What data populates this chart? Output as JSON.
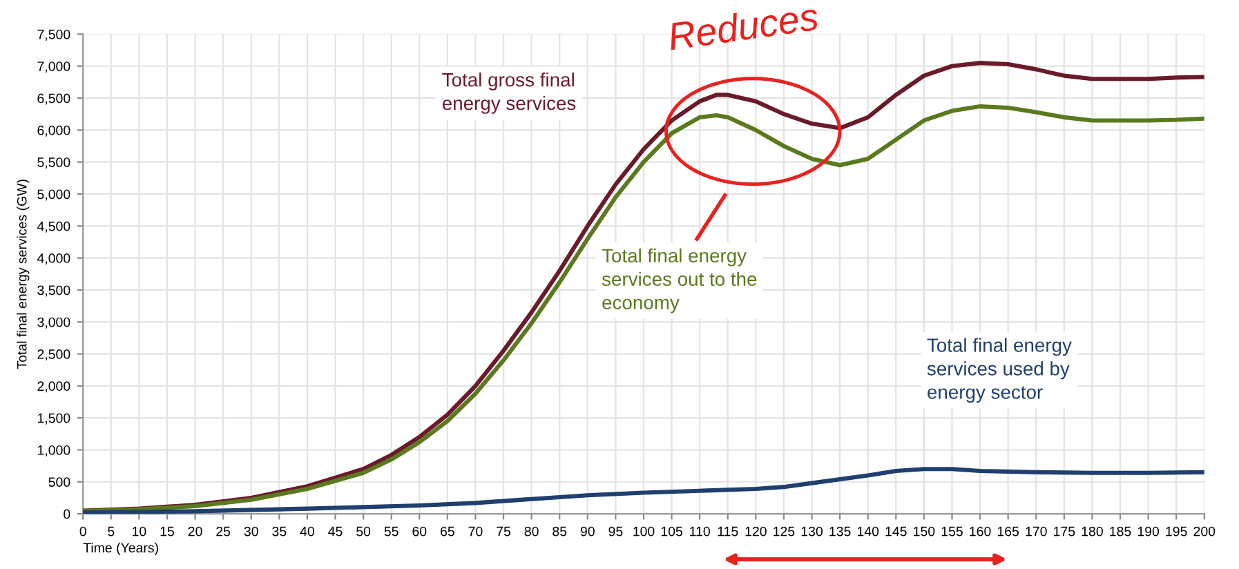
{
  "chart_data": {
    "type": "line",
    "xlabel": "Time (Years)",
    "ylabel": "Total final energy services (GW)",
    "xlim": [
      0,
      200
    ],
    "xticks": [
      0,
      5,
      10,
      15,
      20,
      25,
      30,
      35,
      40,
      45,
      50,
      55,
      60,
      65,
      70,
      75,
      80,
      85,
      90,
      95,
      100,
      105,
      110,
      115,
      120,
      125,
      130,
      135,
      140,
      145,
      150,
      155,
      160,
      165,
      170,
      175,
      180,
      185,
      190,
      195,
      200
    ],
    "ylim": [
      0,
      7500
    ],
    "yticks": [
      {
        "value": 0,
        "label": "0"
      },
      {
        "value": 500,
        "label": "500"
      },
      {
        "value": 1000,
        "label": "1,000"
      },
      {
        "value": 1500,
        "label": "1,500"
      },
      {
        "value": 2000,
        "label": "2,000"
      },
      {
        "value": 2500,
        "label": "2,500"
      },
      {
        "value": 3000,
        "label": "3,000"
      },
      {
        "value": 3500,
        "label": "3,500"
      },
      {
        "value": 4000,
        "label": "4,000"
      },
      {
        "value": 4500,
        "label": "4,500"
      },
      {
        "value": 5000,
        "label": "5,000"
      },
      {
        "value": 5500,
        "label": "5,500"
      },
      {
        "value": 6000,
        "label": "6,000"
      },
      {
        "value": 6500,
        "label": "6,500"
      },
      {
        "value": 7000,
        "label": "7,000"
      },
      {
        "value": 7500,
        "label": "7,500"
      }
    ],
    "grid": true,
    "legend": false,
    "marker": "none",
    "line_style": "solid",
    "annotations": [
      "Reduces"
    ],
    "series": [
      {
        "name": "Total gross final\nenergy services",
        "color": "#6b1a2a",
        "x": [
          0,
          10,
          20,
          30,
          40,
          50,
          55,
          60,
          65,
          70,
          75,
          80,
          85,
          90,
          95,
          100,
          105,
          110,
          113,
          115,
          120,
          125,
          130,
          135,
          140,
          145,
          150,
          155,
          160,
          165,
          170,
          175,
          180,
          185,
          190,
          195,
          200
        ],
        "values": [
          50,
          80,
          140,
          250,
          430,
          700,
          920,
          1200,
          1550,
          2000,
          2550,
          3150,
          3800,
          4500,
          5150,
          5700,
          6150,
          6450,
          6550,
          6550,
          6450,
          6250,
          6100,
          6030,
          6200,
          6550,
          6850,
          7000,
          7050,
          7030,
          6950,
          6850,
          6800,
          6800,
          6800,
          6820,
          6830
        ]
      },
      {
        "name": "Total final energy\nservices out to the\neconomy",
        "color": "#5a7a1e",
        "x": [
          0,
          10,
          20,
          30,
          40,
          50,
          55,
          60,
          65,
          70,
          75,
          80,
          85,
          90,
          95,
          100,
          105,
          110,
          113,
          115,
          120,
          125,
          130,
          135,
          140,
          145,
          150,
          155,
          160,
          165,
          170,
          175,
          180,
          185,
          190,
          195,
          200
        ],
        "values": [
          40,
          70,
          120,
          220,
          390,
          640,
          850,
          1120,
          1450,
          1880,
          2400,
          2980,
          3620,
          4300,
          4950,
          5500,
          5950,
          6200,
          6230,
          6200,
          6000,
          5750,
          5550,
          5450,
          5550,
          5850,
          6150,
          6300,
          6370,
          6350,
          6280,
          6200,
          6150,
          6150,
          6150,
          6160,
          6180
        ]
      },
      {
        "name": "Total final energy\nservices used by\nenergy sector",
        "color": "#1f3f6e",
        "x": [
          0,
          20,
          40,
          60,
          70,
          80,
          90,
          100,
          110,
          120,
          125,
          130,
          140,
          145,
          150,
          155,
          160,
          170,
          180,
          190,
          200
        ],
        "values": [
          20,
          40,
          80,
          130,
          170,
          230,
          290,
          330,
          360,
          390,
          420,
          480,
          600,
          670,
          700,
          700,
          670,
          650,
          640,
          640,
          650
        ]
      }
    ]
  }
}
